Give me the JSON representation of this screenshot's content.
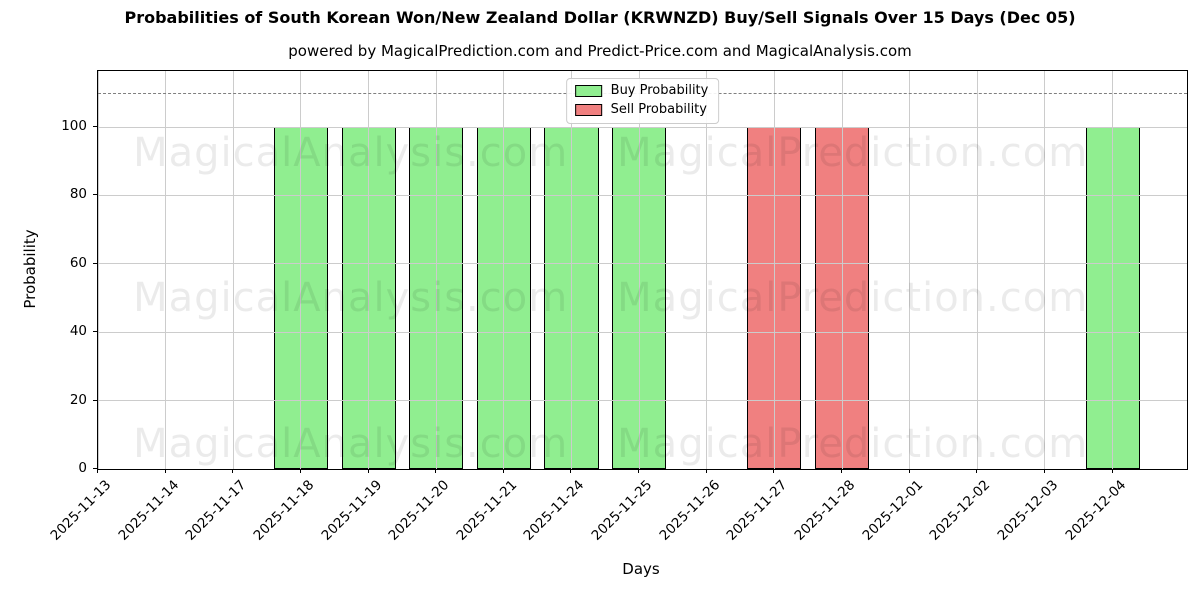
{
  "figure": {
    "title": "Probabilities of South Korean Won/New Zealand Dollar (KRWNZD) Buy/Sell Signals Over 15 Days (Dec 05)",
    "subtitle": "powered by MagicalPrediction.com and Predict-Price.com and MagicalAnalysis.com"
  },
  "chart_data": {
    "type": "bar",
    "title": "Probabilities of South Korean Won/New Zealand Dollar (KRWNZD) Buy/Sell Signals Over 15 Days (Dec 05)",
    "subtitle": "powered by MagicalPrediction.com and Predict-Price.com and MagicalAnalysis.com",
    "xlabel": "Days",
    "ylabel": "Probability",
    "categories": [
      "2025-11-13",
      "2025-11-14",
      "2025-11-17",
      "2025-11-18",
      "2025-11-19",
      "2025-11-20",
      "2025-11-21",
      "2025-11-24",
      "2025-11-25",
      "2025-11-26",
      "2025-11-27",
      "2025-11-28",
      "2025-12-01",
      "2025-12-02",
      "2025-12-03",
      "2025-12-04"
    ],
    "series": [
      {
        "name": "Buy Probability",
        "color": "#90EE90",
        "edge_color": "#000000",
        "values": [
          0,
          0,
          0,
          100,
          100,
          100,
          100,
          100,
          100,
          0,
          0,
          0,
          0,
          0,
          0,
          100
        ]
      },
      {
        "name": "Sell Probability",
        "color": "#F08080",
        "edge_color": "#000000",
        "values": [
          0,
          0,
          0,
          0,
          0,
          0,
          0,
          0,
          0,
          0,
          100,
          100,
          0,
          0,
          0,
          0
        ]
      }
    ],
    "ylim": [
      0,
      116.4
    ],
    "yticks": [
      0,
      20,
      40,
      60,
      80,
      100
    ],
    "dashed_hline": 110,
    "grid": true,
    "legend_position": "upper center",
    "bar_width_fraction": 0.8
  },
  "watermarks": {
    "left_text": "MagicalAnalysis.com",
    "right_text": "MagicalPrediction.com"
  },
  "colors": {
    "buy": "#90EE90",
    "sell": "#F08080",
    "grid": "#cccccc",
    "dashed_line": "#7f7f7f",
    "bar_edge": "#000000",
    "background": "#ffffff"
  }
}
